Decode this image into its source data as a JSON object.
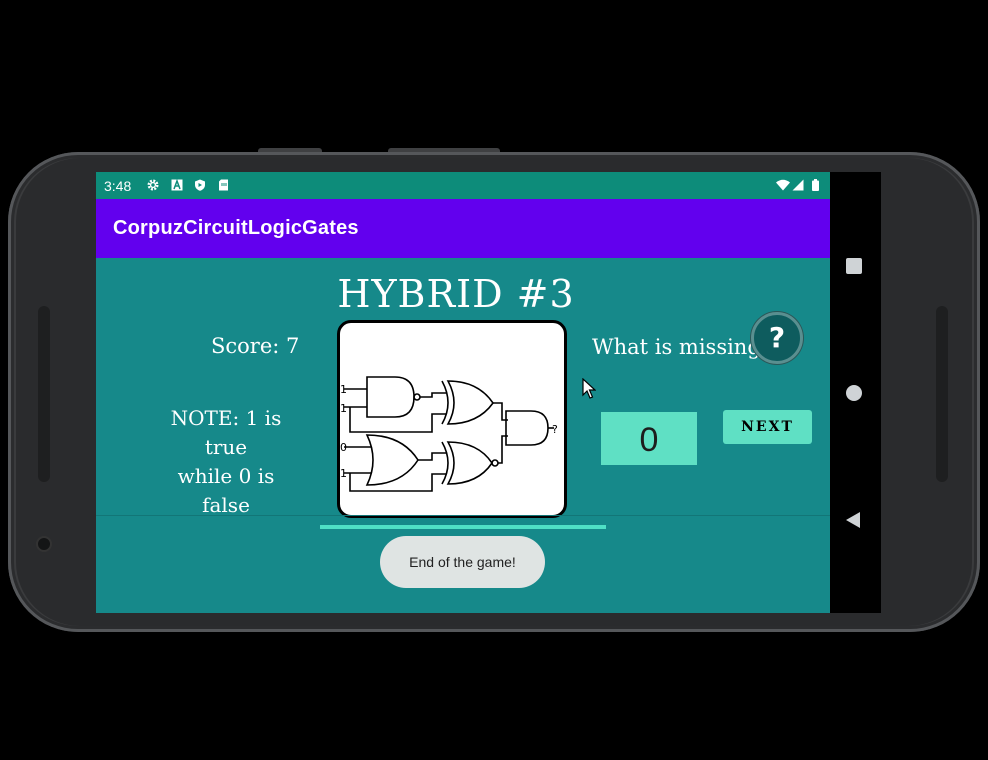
{
  "status_bar": {
    "time": "3:48",
    "left_icons": [
      "gear-icon",
      "a-icon",
      "shield-icon",
      "sim-card-icon"
    ],
    "right_icons": [
      "wifi-icon",
      "signal-icon",
      "battery-icon"
    ]
  },
  "app_bar": {
    "title": "CorpuzCircuitLogicGates"
  },
  "game": {
    "level_title": "HYBRID #3",
    "score_label": "Score: 7",
    "note_line1": "NOTE: 1 is true",
    "note_line2": "while 0 is false",
    "question": "What is missing?",
    "help_label": "?",
    "answer_value": "0",
    "next_label": "NEXT",
    "diagram": {
      "inputs": [
        "1",
        "1",
        "0",
        "1"
      ],
      "output": "?"
    },
    "accent_color": "#5fe0c4",
    "background_color": "#16898a"
  },
  "toast": {
    "message": "End of the game!"
  },
  "nav": [
    "square-icon",
    "circle-icon",
    "back-triangle-icon"
  ]
}
